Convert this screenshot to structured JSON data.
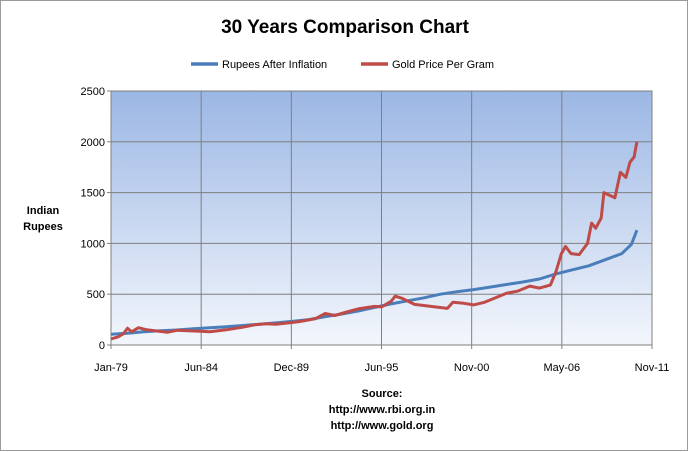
{
  "chart_data": {
    "type": "line",
    "title": "30 Years Comparison Chart",
    "ylabel_lines": [
      "Indian",
      "Rupees"
    ],
    "source_lines": [
      "Source:",
      "http://www.rbi.org.in",
      "http://www.gold.org"
    ],
    "x_ticks": [
      "Jan-79",
      "Jun-84",
      "Dec-89",
      "Jun-95",
      "Nov-00",
      "May-06",
      "Nov-11"
    ],
    "x_range": [
      "1979-01",
      "2011-11"
    ],
    "ylim": [
      0,
      2500
    ],
    "y_ticks": [
      0,
      500,
      1000,
      1500,
      2000,
      2500
    ],
    "grid": true,
    "legend_position": "top",
    "series": [
      {
        "name": "Rupees After Inflation",
        "color": "#4a7ebb",
        "points": [
          [
            "1979-01",
            105
          ],
          [
            "1980-01",
            115
          ],
          [
            "1981-01",
            130
          ],
          [
            "1982-01",
            140
          ],
          [
            "1983-01",
            148
          ],
          [
            "1984-01",
            160
          ],
          [
            "1985-01",
            170
          ],
          [
            "1986-01",
            180
          ],
          [
            "1987-01",
            192
          ],
          [
            "1988-01",
            205
          ],
          [
            "1989-01",
            218
          ],
          [
            "1990-01",
            232
          ],
          [
            "1991-01",
            250
          ],
          [
            "1992-01",
            280
          ],
          [
            "1993-01",
            305
          ],
          [
            "1994-01",
            335
          ],
          [
            "1995-01",
            370
          ],
          [
            "1996-01",
            405
          ],
          [
            "1997-01",
            435
          ],
          [
            "1998-01",
            465
          ],
          [
            "1999-01",
            500
          ],
          [
            "2000-01",
            525
          ],
          [
            "2001-01",
            545
          ],
          [
            "2002-01",
            570
          ],
          [
            "2003-01",
            595
          ],
          [
            "2004-01",
            620
          ],
          [
            "2005-01",
            650
          ],
          [
            "2006-01",
            700
          ],
          [
            "2007-01",
            740
          ],
          [
            "2008-01",
            780
          ],
          [
            "2009-01",
            840
          ],
          [
            "2010-01",
            900
          ],
          [
            "2010-08",
            990
          ],
          [
            "2010-12",
            1130
          ]
        ]
      },
      {
        "name": "Gold Price Per Gram",
        "color": "#be4b48",
        "points": [
          [
            "1979-01",
            60
          ],
          [
            "1979-06",
            80
          ],
          [
            "1979-10",
            110
          ],
          [
            "1980-01",
            165
          ],
          [
            "1980-04",
            130
          ],
          [
            "1980-09",
            170
          ],
          [
            "1981-03",
            150
          ],
          [
            "1981-09",
            140
          ],
          [
            "1982-06",
            125
          ],
          [
            "1983-01",
            145
          ],
          [
            "1983-09",
            140
          ],
          [
            "1984-06",
            135
          ],
          [
            "1985-01",
            130
          ],
          [
            "1986-01",
            150
          ],
          [
            "1987-01",
            175
          ],
          [
            "1987-10",
            200
          ],
          [
            "1988-06",
            210
          ],
          [
            "1989-01",
            205
          ],
          [
            "1989-12",
            220
          ],
          [
            "1990-06",
            230
          ],
          [
            "1991-06",
            260
          ],
          [
            "1992-01",
            310
          ],
          [
            "1992-08",
            290
          ],
          [
            "1993-06",
            330
          ],
          [
            "1994-01",
            355
          ],
          [
            "1995-01",
            380
          ],
          [
            "1995-06",
            375
          ],
          [
            "1996-01",
            430
          ],
          [
            "1996-04",
            480
          ],
          [
            "1996-09",
            460
          ],
          [
            "1997-06",
            400
          ],
          [
            "1998-06",
            380
          ],
          [
            "1999-06",
            360
          ],
          [
            "1999-10",
            420
          ],
          [
            "2000-06",
            410
          ],
          [
            "2001-01",
            395
          ],
          [
            "2001-09",
            420
          ],
          [
            "2002-06",
            470
          ],
          [
            "2003-01",
            510
          ],
          [
            "2003-09",
            530
          ],
          [
            "2004-06",
            580
          ],
          [
            "2005-01",
            560
          ],
          [
            "2005-09",
            590
          ],
          [
            "2006-01",
            720
          ],
          [
            "2006-05",
            900
          ],
          [
            "2006-08",
            970
          ],
          [
            "2006-12",
            900
          ],
          [
            "2007-06",
            890
          ],
          [
            "2007-12",
            1000
          ],
          [
            "2008-03",
            1200
          ],
          [
            "2008-06",
            1150
          ],
          [
            "2008-10",
            1250
          ],
          [
            "2008-12",
            1500
          ],
          [
            "2009-03",
            1480
          ],
          [
            "2009-08",
            1450
          ],
          [
            "2009-12",
            1700
          ],
          [
            "2010-04",
            1650
          ],
          [
            "2010-07",
            1800
          ],
          [
            "2010-10",
            1850
          ],
          [
            "2010-12",
            2000
          ]
        ]
      }
    ]
  }
}
